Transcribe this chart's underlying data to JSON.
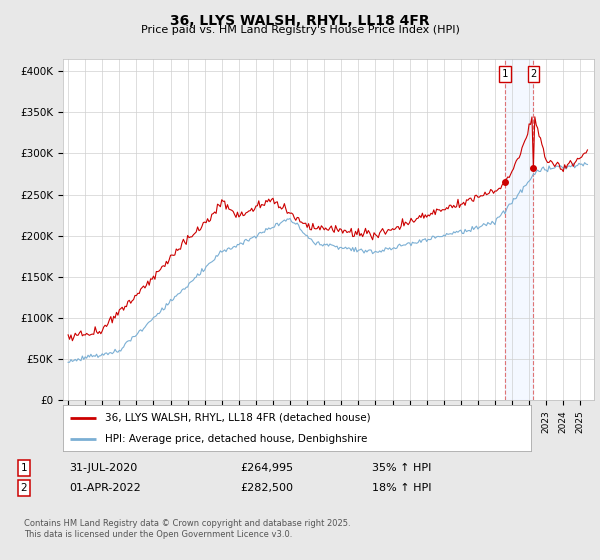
{
  "title": "36, LLYS WALSH, RHYL, LL18 4FR",
  "subtitle": "Price paid vs. HM Land Registry's House Price Index (HPI)",
  "legend_line1": "36, LLYS WALSH, RHYL, LL18 4FR (detached house)",
  "legend_line2": "HPI: Average price, detached house, Denbighshire",
  "line1_color": "#cc0000",
  "line2_color": "#7bafd4",
  "transaction1_date": "31-JUL-2020",
  "transaction1_price": "£264,995",
  "transaction1_hpi": "35% ↑ HPI",
  "transaction2_date": "01-APR-2022",
  "transaction2_price": "£282,500",
  "transaction2_hpi": "18% ↑ HPI",
  "footer": "Contains HM Land Registry data © Crown copyright and database right 2025.\nThis data is licensed under the Open Government Licence v3.0.",
  "vline1_x": 2020.583,
  "vline2_x": 2022.25,
  "vline1_price": 264995,
  "vline2_price": 282500,
  "background_color": "#e8e8e8",
  "plot_bg_color": "#ffffff",
  "yticks": [
    0,
    50000,
    100000,
    150000,
    200000,
    250000,
    300000,
    350000,
    400000
  ],
  "ytick_labels": [
    "£0",
    "£50K",
    "£100K",
    "£150K",
    "£200K",
    "£250K",
    "£300K",
    "£350K",
    "£400K"
  ],
  "ylim": [
    0,
    415000
  ],
  "xlim_start": 1994.7,
  "xlim_end": 2025.8
}
